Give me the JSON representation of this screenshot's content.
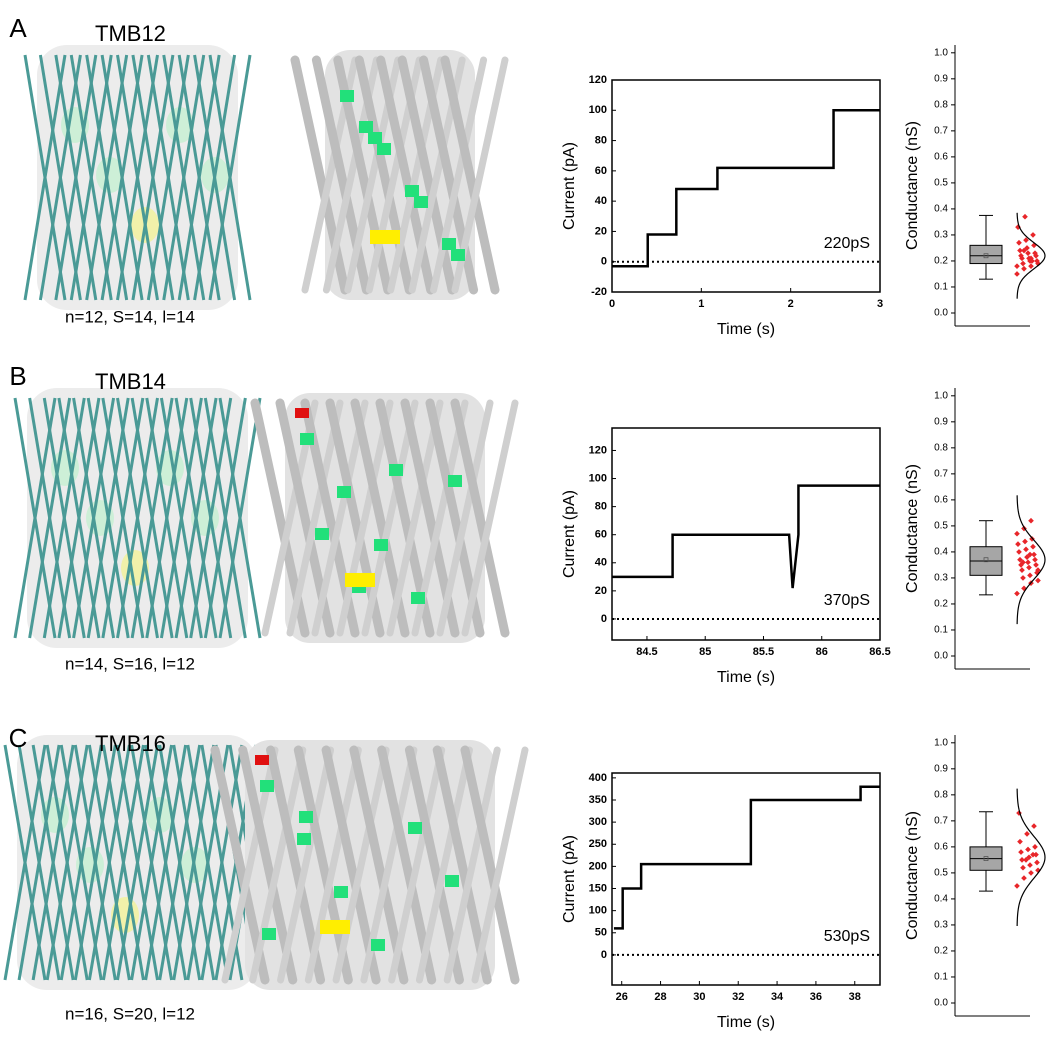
{
  "panels": [
    {
      "letter": "A",
      "name": "TMB12",
      "params": "n=12, S=14, l=14"
    },
    {
      "letter": "B",
      "name": "TMB14",
      "params": "n=14, S=16, l=12"
    },
    {
      "letter": "C",
      "name": "TMB16",
      "params": "n=16, S=20, l=12"
    }
  ],
  "chart_data": [
    {
      "type": "line",
      "xlabel": "Time (s)",
      "ylabel": "Current (pA)",
      "annotation": "220pS",
      "x": [
        0,
        0.4,
        0.4,
        0.72,
        0.72,
        1.18,
        1.18,
        2.48,
        2.48,
        3
      ],
      "values": [
        -3,
        -3,
        18,
        18,
        48,
        48,
        62,
        62,
        100,
        100
      ],
      "color": "#000000",
      "reference_line": 0,
      "xlim": [
        0,
        3
      ],
      "xticks": [
        0,
        1,
        2,
        3
      ],
      "ylim": [
        -20,
        120
      ],
      "yticks": [
        -20,
        0,
        20,
        40,
        60,
        80,
        100,
        120
      ]
    },
    {
      "type": "box",
      "ylabel": "Conductance (nS)",
      "box_color": "#a6a6a6",
      "point_color": "#e8262a",
      "min": 0.13,
      "q1": 0.19,
      "median": 0.22,
      "q3": 0.26,
      "max": 0.375,
      "mean": 0.22,
      "points": [
        0.15,
        0.17,
        0.18,
        0.19,
        0.19,
        0.2,
        0.2,
        0.21,
        0.21,
        0.22,
        0.22,
        0.23,
        0.23,
        0.24,
        0.25,
        0.26,
        0.27,
        0.28,
        0.3,
        0.33,
        0.37,
        0.2,
        0.18,
        0.24,
        0.21
      ],
      "fit_mean": 0.22,
      "fit_sd": 0.05,
      "ylim": [
        -0.05,
        1.03
      ],
      "yticks": [
        {
          "value": 0,
          "label": "0.0"
        },
        0.1,
        0.2,
        0.3,
        0.4,
        0.5,
        0.6,
        0.7,
        0.8,
        0.9,
        {
          "value": 1,
          "label": "1.0"
        }
      ]
    },
    {
      "type": "line",
      "xlabel": "Time (s)",
      "ylabel": "Current (pA)",
      "annotation": "370pS",
      "x": [
        84.2,
        84.72,
        84.72,
        85.72,
        85.75,
        85.8,
        85.8,
        86.5
      ],
      "values": [
        30,
        30,
        60,
        60,
        22,
        60,
        95,
        95
      ],
      "color": "#000000",
      "reference_line": 0,
      "xlim": [
        84.2,
        86.5
      ],
      "xticks": [
        84.5,
        85,
        85.5,
        86,
        86.5
      ],
      "ylim": [
        -15,
        136
      ],
      "yticks": [
        0,
        20,
        40,
        60,
        80,
        100,
        120
      ]
    },
    {
      "type": "box",
      "ylabel": "Conductance (nS)",
      "box_color": "#a6a6a6",
      "point_color": "#e8262a",
      "min": 0.235,
      "q1": 0.31,
      "median": 0.365,
      "q3": 0.42,
      "max": 0.52,
      "mean": 0.37,
      "points": [
        0.24,
        0.26,
        0.28,
        0.29,
        0.3,
        0.31,
        0.32,
        0.33,
        0.34,
        0.35,
        0.35,
        0.36,
        0.37,
        0.37,
        0.38,
        0.39,
        0.4,
        0.41,
        0.42,
        0.43,
        0.44,
        0.45,
        0.47,
        0.49,
        0.52,
        0.33,
        0.36,
        0.39
      ],
      "fit_mean": 0.37,
      "fit_sd": 0.075,
      "ylim": [
        -0.05,
        1.03
      ],
      "yticks": [
        {
          "value": 0,
          "label": "0.0"
        },
        0.1,
        0.2,
        0.3,
        0.4,
        0.5,
        0.6,
        0.7,
        0.8,
        0.9,
        {
          "value": 1,
          "label": "1.0"
        }
      ]
    },
    {
      "type": "line",
      "xlabel": "Time (s)",
      "ylabel": "Current (pA)",
      "annotation": "530pS",
      "x": [
        25.6,
        26.05,
        26.05,
        27,
        27,
        32.65,
        32.65,
        38.3,
        38.3,
        39.3
      ],
      "values": [
        60,
        60,
        150,
        150,
        205,
        205,
        350,
        350,
        380,
        380
      ],
      "color": "#000000",
      "reference_line": 0,
      "xlim": [
        25.5,
        39.3
      ],
      "xticks": [
        26,
        28,
        30,
        32,
        34,
        36,
        38
      ],
      "ylim": [
        -68,
        411
      ],
      "yticks": [
        0,
        50,
        100,
        150,
        200,
        250,
        300,
        350,
        400
      ]
    },
    {
      "type": "box",
      "ylabel": "Conductance (nS)",
      "box_color": "#a6a6a6",
      "point_color": "#e8262a",
      "min": 0.43,
      "q1": 0.51,
      "median": 0.555,
      "q3": 0.6,
      "max": 0.735,
      "mean": 0.555,
      "points": [
        0.45,
        0.48,
        0.5,
        0.51,
        0.52,
        0.53,
        0.54,
        0.55,
        0.56,
        0.57,
        0.58,
        0.59,
        0.6,
        0.62,
        0.65,
        0.68,
        0.73,
        0.55,
        0.57
      ],
      "fit_mean": 0.56,
      "fit_sd": 0.08,
      "ylim": [
        -0.05,
        1.03
      ],
      "yticks": [
        {
          "value": 0,
          "label": "0.0"
        },
        0.1,
        0.2,
        0.3,
        0.4,
        0.5,
        0.6,
        0.7,
        0.8,
        0.9,
        {
          "value": 1,
          "label": "1.0"
        }
      ]
    }
  ]
}
